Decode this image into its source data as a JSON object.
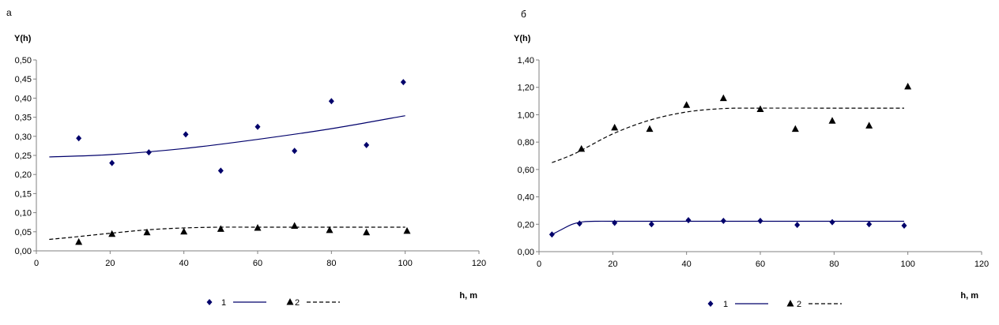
{
  "chart_data": [
    {
      "type": "scatter",
      "panel_label": "а",
      "ylabel": "Y(h)",
      "xlabel": "h, m",
      "xlim": [
        0,
        120
      ],
      "ylim": [
        0,
        0.5
      ],
      "xticks": [
        0,
        20,
        40,
        60,
        80,
        100,
        120
      ],
      "yticks": [
        0,
        0.05,
        0.1,
        0.15,
        0.2,
        0.25,
        0.3,
        0.35,
        0.4,
        0.45,
        0.5
      ],
      "ytick_labels": [
        "0,00",
        "0,05",
        "0,10",
        "0,15",
        "0,20",
        "0,25",
        "0,30",
        "0,35",
        "0,40",
        "0,45",
        "0,50"
      ],
      "xtick_labels": [
        "0",
        "20",
        "40",
        "60",
        "80",
        "100",
        "120"
      ],
      "series": [
        {
          "name": "1",
          "marker": "diamond",
          "color": "#00006b",
          "line_style": "solid",
          "points": [
            [
              11.5,
              0.295
            ],
            [
              20.5,
              0.23
            ],
            [
              30.5,
              0.258
            ],
            [
              40.5,
              0.305
            ],
            [
              50,
              0.21
            ],
            [
              60,
              0.325
            ],
            [
              70,
              0.262
            ],
            [
              80,
              0.392
            ],
            [
              89.5,
              0.277
            ],
            [
              99.5,
              0.442
            ]
          ],
          "fit": [
            [
              3.5,
              0.246
            ],
            [
              20,
              0.252
            ],
            [
              40,
              0.268
            ],
            [
              60,
              0.292
            ],
            [
              80,
              0.32
            ],
            [
              100,
              0.354
            ]
          ]
        },
        {
          "name": "2",
          "marker": "triangle",
          "color": "#000000",
          "line_style": "dashed",
          "points": [
            [
              11.5,
              0.023
            ],
            [
              20.5,
              0.044
            ],
            [
              30,
              0.048
            ],
            [
              40,
              0.05
            ],
            [
              50,
              0.057
            ],
            [
              60,
              0.06
            ],
            [
              70,
              0.065
            ],
            [
              79.5,
              0.054
            ],
            [
              89.5,
              0.048
            ],
            [
              100.5,
              0.052
            ]
          ],
          "fit": [
            [
              3.5,
              0.03
            ],
            [
              10,
              0.036
            ],
            [
              20,
              0.046
            ],
            [
              30,
              0.055
            ],
            [
              40,
              0.06
            ],
            [
              50,
              0.062
            ],
            [
              60,
              0.062
            ],
            [
              80,
              0.062
            ],
            [
              100,
              0.062
            ]
          ]
        }
      ],
      "legend": {
        "placement": "bottom",
        "entries": [
          "1",
          "2"
        ]
      }
    },
    {
      "type": "scatter",
      "panel_label": "б",
      "ylabel": "Y(h)",
      "xlabel": "h, m",
      "xlim": [
        0,
        120
      ],
      "ylim": [
        0,
        1.4
      ],
      "xticks": [
        0,
        20,
        40,
        60,
        80,
        100,
        120
      ],
      "yticks": [
        0,
        0.2,
        0.4,
        0.6,
        0.8,
        1.0,
        1.2,
        1.4
      ],
      "ytick_labels": [
        "0,00",
        "0,20",
        "0,40",
        "0,60",
        "0,80",
        "1,00",
        "1,20",
        "1,40"
      ],
      "xtick_labels": [
        "0",
        "20",
        "40",
        "60",
        "80",
        "100",
        "120"
      ],
      "series": [
        {
          "name": "1",
          "marker": "diamond",
          "color": "#00006b",
          "line_style": "solid",
          "points": [
            [
              3.5,
              0.125
            ],
            [
              11,
              0.205
            ],
            [
              20.5,
              0.21
            ],
            [
              30.5,
              0.2
            ],
            [
              40.5,
              0.23
            ],
            [
              50,
              0.225
            ],
            [
              60,
              0.225
            ],
            [
              70,
              0.195
            ],
            [
              79.5,
              0.215
            ],
            [
              89.5,
              0.2
            ],
            [
              99,
              0.19
            ]
          ],
          "fit": [
            [
              3.5,
              0.125
            ],
            [
              6,
              0.16
            ],
            [
              9,
              0.2
            ],
            [
              12,
              0.218
            ],
            [
              16,
              0.222
            ],
            [
              20,
              0.222
            ],
            [
              40,
              0.222
            ],
            [
              60,
              0.222
            ],
            [
              80,
              0.222
            ],
            [
              99,
              0.222
            ]
          ]
        },
        {
          "name": "2",
          "marker": "triangle",
          "color": "#000000",
          "line_style": "dashed",
          "points": [
            [
              11.5,
              0.75
            ],
            [
              20.5,
              0.905
            ],
            [
              30,
              0.895
            ],
            [
              40,
              1.07
            ],
            [
              50,
              1.12
            ],
            [
              60,
              1.04
            ],
            [
              69.5,
              0.895
            ],
            [
              79.5,
              0.955
            ],
            [
              89.5,
              0.92
            ],
            [
              100,
              1.205
            ]
          ],
          "fit": [
            [
              3.5,
              0.65
            ],
            [
              10,
              0.72
            ],
            [
              20,
              0.86
            ],
            [
              30,
              0.96
            ],
            [
              40,
              1.02
            ],
            [
              50,
              1.045
            ],
            [
              60,
              1.048
            ],
            [
              80,
              1.048
            ],
            [
              99,
              1.048
            ]
          ]
        }
      ],
      "legend": {
        "placement": "bottom",
        "entries": [
          "1",
          "2"
        ]
      }
    }
  ]
}
